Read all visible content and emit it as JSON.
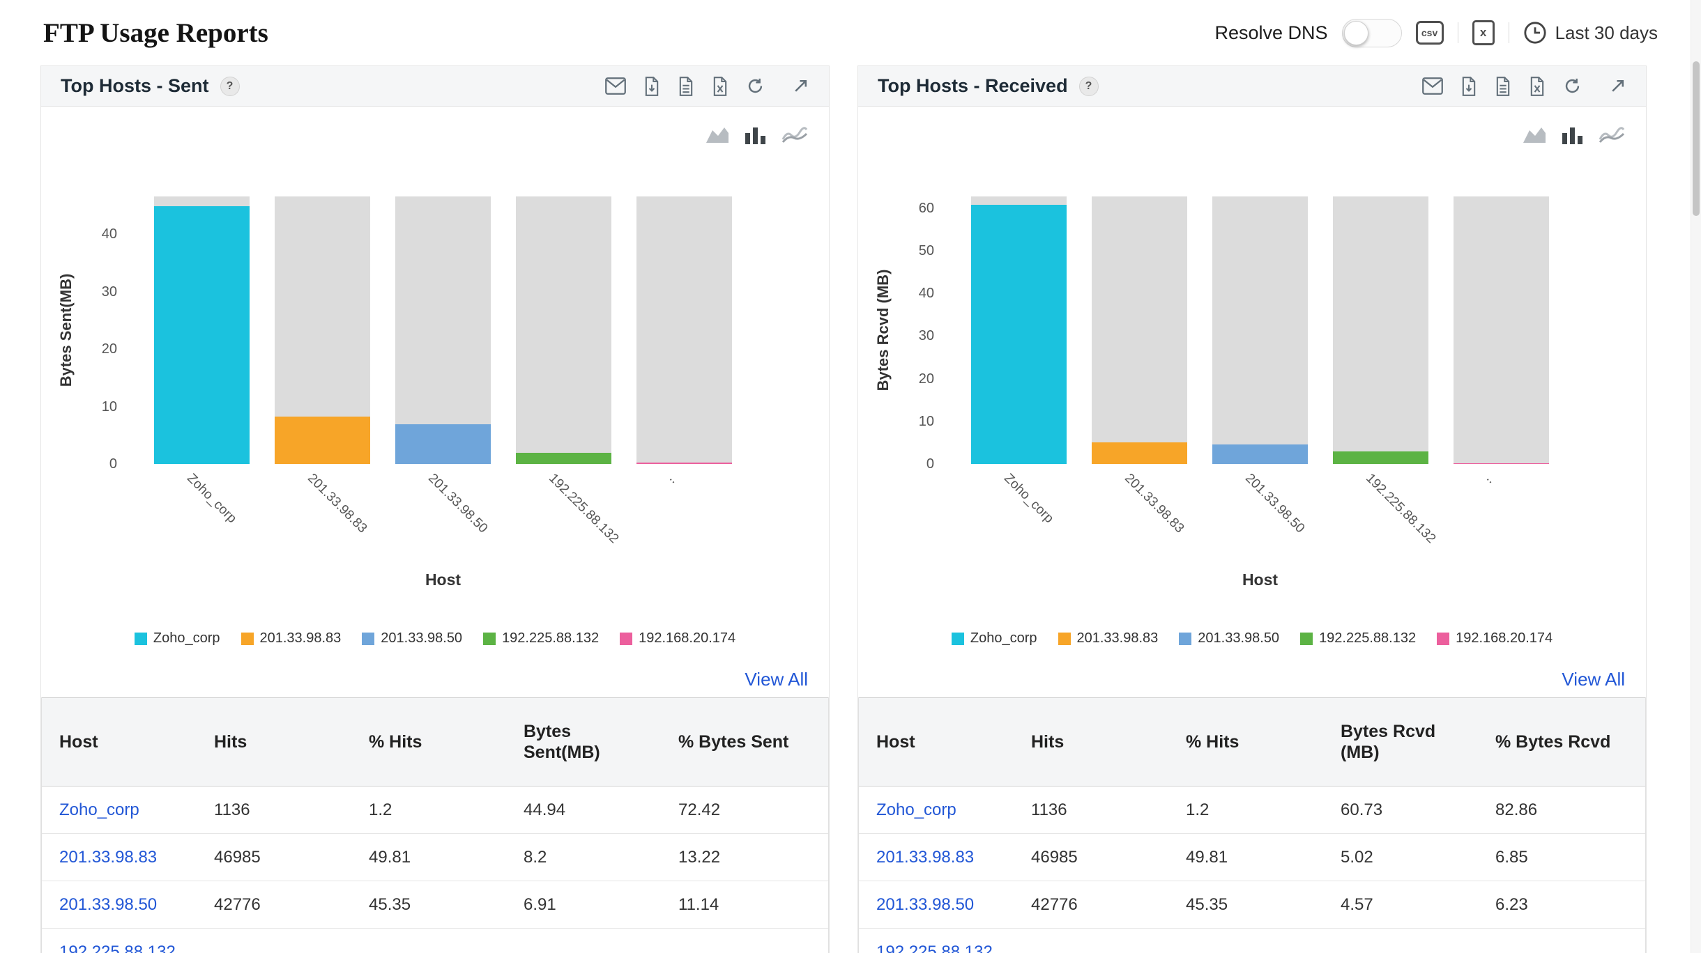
{
  "page": {
    "link_color": "#2257d6"
  },
  "header": {
    "title": "FTP Usage Reports",
    "resolve_dns": "Resolve DNS",
    "csv_icon": "csv",
    "excel_icon": "x",
    "time_range": "Last 30 days"
  },
  "chart_data": [
    {
      "type": "bar",
      "title": "Top Hosts - Sent",
      "xlabel": "Host",
      "ylabel": "Bytes Sent(MB)",
      "categories": [
        "Zoho_corp",
        "201.33.98.83",
        "201.33.98.50",
        "192.225.88.132",
        "192.168.20.174"
      ],
      "x_tick_labels": [
        "Zoho_corp",
        "201.33.98.83",
        "201.33.98.50",
        "192.225.88.132",
        ".."
      ],
      "values": [
        44.94,
        8.2,
        6.91,
        2.0,
        0.2
      ],
      "ylim": [
        0,
        46.6
      ],
      "yticks": [
        0,
        10,
        20,
        30,
        40
      ],
      "colors": [
        "#1bc2de",
        "#f7a528",
        "#6fa5da",
        "#5cb344",
        "#ec5f9d"
      ],
      "track_color": "#dcdcdc",
      "grid": false,
      "legend_position": "bottom"
    },
    {
      "type": "bar",
      "title": "Top Hosts - Received",
      "xlabel": "Host",
      "ylabel": "Bytes Rcvd (MB)",
      "categories": [
        "Zoho_corp",
        "201.33.98.83",
        "201.33.98.50",
        "192.225.88.132",
        "192.168.20.174"
      ],
      "x_tick_labels": [
        "Zoho_corp",
        "201.33.98.83",
        "201.33.98.50",
        "192.225.88.132",
        ".."
      ],
      "values": [
        60.73,
        5.02,
        4.57,
        3.0,
        0.2
      ],
      "ylim": [
        0,
        62.7
      ],
      "yticks": [
        0,
        10,
        20,
        30,
        40,
        50,
        60
      ],
      "colors": [
        "#1bc2de",
        "#f7a528",
        "#6fa5da",
        "#5cb344",
        "#ec5f9d"
      ],
      "track_color": "#dcdcdc",
      "grid": false,
      "legend_position": "bottom"
    }
  ],
  "panels": [
    {
      "title": "Top Hosts - Sent",
      "help": "?",
      "view_all": "View All",
      "table": {
        "headers": [
          "Host",
          "Hits",
          "% Hits",
          "Bytes Sent(MB)",
          "% Bytes Sent"
        ],
        "rows": [
          [
            "Zoho_corp",
            "1136",
            "1.2",
            "44.94",
            "72.42"
          ],
          [
            "201.33.98.83",
            "46985",
            "49.81",
            "8.2",
            "13.22"
          ],
          [
            "201.33.98.50",
            "42776",
            "45.35",
            "6.91",
            "11.14"
          ],
          [
            "192.225.88.132",
            "",
            "",
            "",
            ""
          ]
        ]
      }
    },
    {
      "title": "Top Hosts - Received",
      "help": "?",
      "view_all": "View All",
      "table": {
        "headers": [
          "Host",
          "Hits",
          "% Hits",
          "Bytes Rcvd (MB)",
          "% Bytes Rcvd"
        ],
        "rows": [
          [
            "Zoho_corp",
            "1136",
            "1.2",
            "60.73",
            "82.86"
          ],
          [
            "201.33.98.83",
            "46985",
            "49.81",
            "5.02",
            "6.85"
          ],
          [
            "201.33.98.50",
            "42776",
            "45.35",
            "4.57",
            "6.23"
          ],
          [
            "192.225.88.132",
            "",
            "",
            "",
            ""
          ]
        ]
      }
    }
  ]
}
